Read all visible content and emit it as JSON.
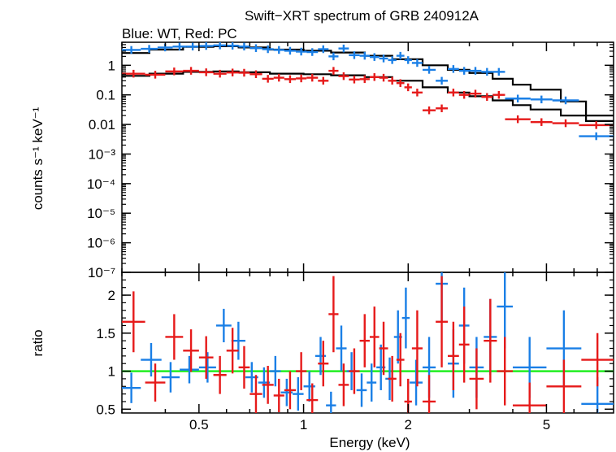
{
  "title": "Swift−XRT spectrum of GRB 240912A",
  "subtitle": "Blue: WT, Red: PC",
  "colors": {
    "wt": "#1a7fe6",
    "pc": "#e61a1a",
    "model": "#000000",
    "unity": "#22ee22"
  },
  "chart_data": [
    {
      "type": "scatter",
      "title": "Swift−XRT spectrum of GRB 240912A",
      "subtitle": "Blue: WT, Red: PC",
      "xscale": "log",
      "yscale": "log",
      "xlim": [
        0.3,
        7.8
      ],
      "ylim": [
        1e-07,
        6
      ],
      "ylabel": "counts s⁻¹ keV⁻¹",
      "ytick_labels": [
        "1",
        "0.1",
        "0.01",
        "10⁻³",
        "10⁻⁴",
        "10⁻⁵",
        "10⁻⁶",
        "10⁻⁷"
      ],
      "series": [
        {
          "name": "WT",
          "color": "#1a7fe6",
          "points": [
            [
              0.3,
              0.34,
              3.3
            ],
            [
              0.34,
              0.38,
              3.6
            ],
            [
              0.38,
              0.42,
              4.0
            ],
            [
              0.42,
              0.46,
              4.3
            ],
            [
              0.46,
              0.5,
              4.3
            ],
            [
              0.5,
              0.55,
              4.5
            ],
            [
              0.55,
              0.6,
              4.7
            ],
            [
              0.6,
              0.65,
              4.6
            ],
            [
              0.65,
              0.7,
              4.3
            ],
            [
              0.7,
              0.76,
              3.8
            ],
            [
              0.76,
              0.82,
              3.5
            ],
            [
              0.82,
              0.88,
              3.3
            ],
            [
              0.88,
              0.95,
              3.1
            ],
            [
              0.95,
              1.02,
              2.9
            ],
            [
              1.02,
              1.1,
              2.8
            ],
            [
              1.1,
              1.18,
              3.5
            ],
            [
              1.18,
              1.26,
              2.0
            ],
            [
              1.26,
              1.35,
              3.7
            ],
            [
              1.35,
              1.45,
              2.2
            ],
            [
              1.45,
              1.55,
              2.1
            ],
            [
              1.55,
              1.65,
              1.9
            ],
            [
              1.65,
              1.75,
              1.7
            ],
            [
              1.75,
              1.85,
              1.5
            ],
            [
              1.85,
              1.95,
              2.1
            ],
            [
              1.95,
              2.05,
              1.5
            ],
            [
              2.05,
              2.2,
              1.2
            ],
            [
              2.2,
              2.4,
              0.7
            ],
            [
              2.4,
              2.6,
              0.3
            ],
            [
              2.6,
              2.8,
              0.75
            ],
            [
              2.8,
              3.0,
              0.65
            ],
            [
              3.0,
              3.25,
              0.65
            ],
            [
              3.25,
              3.5,
              0.6
            ],
            [
              3.5,
              3.8,
              0.6
            ],
            [
              3.8,
              4.5,
              0.075
            ],
            [
              4.5,
              5.2,
              0.07
            ],
            [
              5.2,
              6.2,
              0.065
            ],
            [
              6.2,
              7.8,
              0.004
            ]
          ],
          "model": [
            [
              0.3,
              2.6
            ],
            [
              0.36,
              3.4
            ],
            [
              0.45,
              4.2
            ],
            [
              0.55,
              4.4
            ],
            [
              0.65,
              4.0
            ],
            [
              0.8,
              3.4
            ],
            [
              1.0,
              3.1
            ],
            [
              1.2,
              2.7
            ],
            [
              1.5,
              2.1
            ],
            [
              1.8,
              1.6
            ],
            [
              2.2,
              1.0
            ],
            [
              2.6,
              0.7
            ],
            [
              3.0,
              0.55
            ],
            [
              3.5,
              0.35
            ],
            [
              4.0,
              0.22
            ],
            [
              4.5,
              0.15
            ],
            [
              5.5,
              0.06
            ],
            [
              6.5,
              0.02
            ],
            [
              7.8,
              0.008
            ]
          ]
        },
        {
          "name": "PC",
          "color": "#e61a1a",
          "points": [
            [
              0.3,
              0.35,
              0.52
            ],
            [
              0.35,
              0.4,
              0.48
            ],
            [
              0.4,
              0.45,
              0.62
            ],
            [
              0.45,
              0.5,
              0.65
            ],
            [
              0.5,
              0.55,
              0.58
            ],
            [
              0.55,
              0.6,
              0.52
            ],
            [
              0.6,
              0.65,
              0.57
            ],
            [
              0.65,
              0.7,
              0.56
            ],
            [
              0.7,
              0.76,
              0.5
            ],
            [
              0.76,
              0.82,
              0.35
            ],
            [
              0.82,
              0.88,
              0.38
            ],
            [
              0.88,
              0.95,
              0.34
            ],
            [
              0.95,
              1.02,
              0.36
            ],
            [
              1.02,
              1.1,
              0.38
            ],
            [
              1.1,
              1.18,
              0.3
            ],
            [
              1.18,
              1.26,
              0.65
            ],
            [
              1.26,
              1.35,
              0.43
            ],
            [
              1.35,
              1.45,
              0.33
            ],
            [
              1.45,
              1.55,
              0.34
            ],
            [
              1.55,
              1.65,
              0.4
            ],
            [
              1.65,
              1.75,
              0.38
            ],
            [
              1.75,
              1.85,
              0.3
            ],
            [
              1.85,
              1.95,
              0.25
            ],
            [
              1.95,
              2.05,
              0.18
            ],
            [
              2.05,
              2.2,
              0.12
            ],
            [
              2.2,
              2.4,
              0.03
            ],
            [
              2.4,
              2.6,
              0.035
            ],
            [
              2.6,
              2.8,
              0.12
            ],
            [
              2.8,
              3.0,
              0.1
            ],
            [
              3.0,
              3.25,
              0.11
            ],
            [
              3.25,
              3.5,
              0.085
            ],
            [
              3.5,
              3.8,
              0.1
            ],
            [
              3.8,
              4.5,
              0.015
            ],
            [
              4.5,
              5.2,
              0.012
            ],
            [
              5.2,
              6.2,
              0.011
            ],
            [
              6.2,
              7.8,
              0.0095
            ]
          ],
          "model": [
            [
              0.3,
              0.44
            ],
            [
              0.36,
              0.52
            ],
            [
              0.45,
              0.6
            ],
            [
              0.55,
              0.62
            ],
            [
              0.65,
              0.58
            ],
            [
              0.8,
              0.52
            ],
            [
              1.0,
              0.5
            ],
            [
              1.2,
              0.46
            ],
            [
              1.5,
              0.4
            ],
            [
              1.8,
              0.3
            ],
            [
              2.2,
              0.18
            ],
            [
              2.6,
              0.12
            ],
            [
              3.0,
              0.09
            ],
            [
              3.5,
              0.065
            ],
            [
              4.0,
              0.045
            ],
            [
              4.5,
              0.032
            ],
            [
              5.5,
              0.02
            ],
            [
              6.5,
              0.013
            ],
            [
              7.8,
              0.01
            ]
          ]
        }
      ]
    },
    {
      "type": "scatter",
      "xscale": "log",
      "xlim": [
        0.3,
        7.8
      ],
      "ylim": [
        0.45,
        2.3
      ],
      "xlabel": "Energy (keV)",
      "ylabel": "ratio",
      "xtick_labels": [
        "0.5",
        "1",
        "2",
        "5"
      ],
      "ytick_labels": [
        "0.5",
        "1",
        "1.5",
        "2"
      ],
      "reference_line": 1,
      "series": [
        {
          "name": "WT",
          "color": "#1a7fe6",
          "points": [
            [
              0.3,
              0.34,
              0.78,
              0.2
            ],
            [
              0.34,
              0.39,
              1.15,
              0.22
            ],
            [
              0.39,
              0.44,
              0.92,
              0.2
            ],
            [
              0.44,
              0.5,
              1.02,
              0.18
            ],
            [
              0.5,
              0.56,
              1.05,
              0.2
            ],
            [
              0.56,
              0.62,
              1.6,
              0.22
            ],
            [
              0.62,
              0.68,
              1.4,
              0.25
            ],
            [
              0.68,
              0.74,
              0.92,
              0.2
            ],
            [
              0.74,
              0.8,
              0.85,
              0.2
            ],
            [
              0.8,
              0.86,
              1.0,
              0.2
            ],
            [
              0.86,
              0.93,
              0.72,
              0.18
            ],
            [
              0.93,
              1.0,
              0.7,
              0.22
            ],
            [
              1.0,
              1.08,
              0.8,
              0.2
            ],
            [
              1.08,
              1.16,
              1.2,
              0.25
            ],
            [
              1.16,
              1.24,
              0.55,
              0.18
            ],
            [
              1.24,
              1.33,
              1.3,
              0.3
            ],
            [
              1.33,
              1.42,
              1.0,
              0.25
            ],
            [
              1.42,
              1.52,
              0.75,
              0.22
            ],
            [
              1.52,
              1.62,
              0.85,
              0.25
            ],
            [
              1.62,
              1.72,
              1.05,
              0.3
            ],
            [
              1.72,
              1.82,
              0.9,
              0.28
            ],
            [
              1.82,
              1.92,
              1.45,
              0.35
            ],
            [
              1.92,
              2.02,
              1.7,
              0.4
            ],
            [
              2.02,
              2.2,
              0.85,
              0.3
            ],
            [
              2.2,
              2.4,
              1.05,
              0.4
            ],
            [
              2.4,
              2.6,
              2.15,
              0.5
            ],
            [
              2.6,
              2.8,
              1.1,
              0.45
            ],
            [
              2.8,
              3.0,
              1.6,
              0.5
            ],
            [
              3.0,
              3.3,
              1.05,
              0.4
            ],
            [
              3.3,
              3.6,
              1.45,
              0.5
            ],
            [
              3.6,
              4.0,
              1.85,
              0.55
            ],
            [
              4.0,
              5.0,
              1.05,
              0.4
            ],
            [
              5.0,
              6.3,
              1.3,
              0.5
            ],
            [
              6.3,
              7.8,
              0.57,
              0.35
            ]
          ]
        },
        {
          "name": "PC",
          "color": "#e61a1a",
          "points": [
            [
              0.3,
              0.35,
              1.65,
              0.4
            ],
            [
              0.35,
              0.4,
              0.85,
              0.25
            ],
            [
              0.4,
              0.45,
              1.45,
              0.3
            ],
            [
              0.45,
              0.5,
              1.27,
              0.28
            ],
            [
              0.5,
              0.55,
              1.18,
              0.28
            ],
            [
              0.55,
              0.6,
              0.95,
              0.25
            ],
            [
              0.6,
              0.65,
              1.27,
              0.3
            ],
            [
              0.65,
              0.7,
              1.05,
              0.28
            ],
            [
              0.7,
              0.76,
              0.7,
              0.25
            ],
            [
              0.76,
              0.82,
              0.82,
              0.25
            ],
            [
              0.82,
              0.88,
              0.68,
              0.22
            ],
            [
              0.88,
              0.95,
              0.75,
              0.25
            ],
            [
              0.95,
              1.02,
              1.0,
              0.25
            ],
            [
              1.02,
              1.1,
              0.62,
              0.22
            ],
            [
              1.1,
              1.18,
              1.1,
              0.3
            ],
            [
              1.18,
              1.26,
              1.75,
              0.5
            ],
            [
              1.26,
              1.35,
              0.82,
              0.28
            ],
            [
              1.35,
              1.45,
              1.0,
              0.3
            ],
            [
              1.45,
              1.55,
              1.4,
              0.35
            ],
            [
              1.55,
              1.65,
              1.45,
              0.4
            ],
            [
              1.65,
              1.75,
              1.3,
              0.35
            ],
            [
              1.75,
              1.85,
              0.9,
              0.3
            ],
            [
              1.85,
              1.95,
              1.15,
              0.35
            ],
            [
              1.95,
              2.05,
              0.6,
              0.3
            ],
            [
              2.05,
              2.2,
              1.3,
              0.5
            ],
            [
              2.2,
              2.4,
              0.6,
              0.35
            ],
            [
              2.4,
              2.6,
              1.65,
              0.6
            ],
            [
              2.6,
              2.8,
              1.2,
              0.45
            ],
            [
              2.8,
              3.0,
              1.35,
              0.5
            ],
            [
              3.0,
              3.3,
              0.9,
              0.4
            ],
            [
              3.3,
              3.6,
              1.4,
              0.55
            ],
            [
              3.6,
              4.0,
              1.0,
              0.45
            ],
            [
              4.0,
              5.0,
              0.55,
              0.3
            ],
            [
              5.0,
              6.3,
              0.8,
              0.35
            ],
            [
              6.3,
              7.8,
              1.15,
              0.35
            ]
          ]
        }
      ]
    }
  ]
}
